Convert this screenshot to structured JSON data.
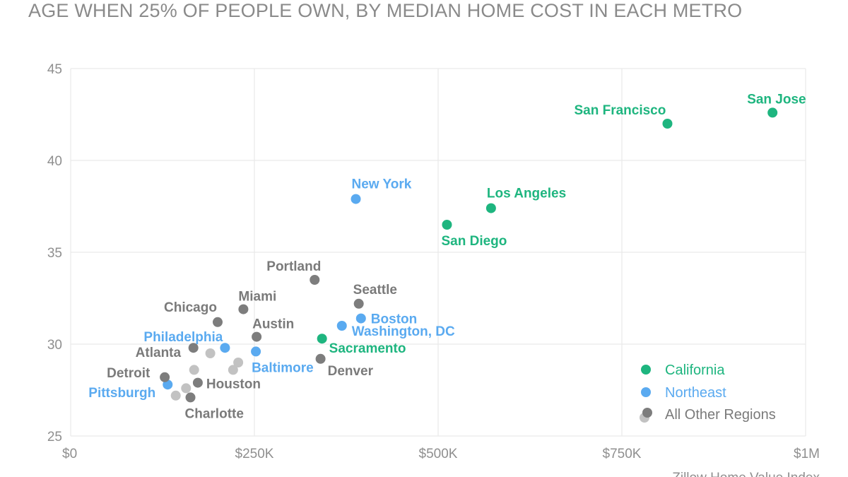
{
  "title": "AGE WHEN 25% OF PEOPLE OWN, BY MEDIAN HOME COST IN EACH METRO",
  "colors": {
    "california": "#1eb57f",
    "northeast": "#5aaaf0",
    "other_dark": "#7d7d7d",
    "other_light": "#c2c2c2",
    "grid": "#e6e6e6"
  },
  "chart_data": {
    "type": "scatter",
    "title": "AGE WHEN 25% OF PEOPLE OWN, BY MEDIAN HOME COST IN EACH METRO",
    "xlabel": "Zillow Home Value Index",
    "ylabel": "",
    "xlim": [
      0,
      1000000
    ],
    "ylim": [
      25,
      45
    ],
    "x_ticks": [
      0,
      250000,
      500000,
      750000,
      1000000
    ],
    "x_tick_labels": [
      "$0",
      "$250K",
      "$500K",
      "$750K",
      "$1M"
    ],
    "y_ticks": [
      25,
      30,
      35,
      40,
      45
    ],
    "y_tick_labels": [
      "25",
      "30",
      "35",
      "40",
      "45"
    ],
    "grid": true,
    "legend_position": "bottom-right",
    "legend": [
      {
        "key": "california",
        "label": "California"
      },
      {
        "key": "northeast",
        "label": "Northeast"
      },
      {
        "key": "other",
        "label": "All Other Regions"
      }
    ],
    "points": [
      {
        "label": "San Jose",
        "x": 955000,
        "y": 42.6,
        "group": "california"
      },
      {
        "label": "San Francisco",
        "x": 812000,
        "y": 42.0,
        "group": "california"
      },
      {
        "label": "Los Angeles",
        "x": 572000,
        "y": 37.4,
        "group": "california"
      },
      {
        "label": "San Diego",
        "x": 512000,
        "y": 36.5,
        "group": "california"
      },
      {
        "label": "Sacramento",
        "x": 342000,
        "y": 30.3,
        "group": "california"
      },
      {
        "label": "New York",
        "x": 388000,
        "y": 37.9,
        "group": "northeast"
      },
      {
        "label": "Boston",
        "x": 395000,
        "y": 31.4,
        "group": "northeast"
      },
      {
        "label": "Washington, DC",
        "x": 369000,
        "y": 31.0,
        "group": "northeast"
      },
      {
        "label": "Philadelphia",
        "x": 210000,
        "y": 29.8,
        "group": "northeast"
      },
      {
        "label": "Baltimore",
        "x": 252000,
        "y": 29.6,
        "group": "northeast"
      },
      {
        "label": "Pittsburgh",
        "x": 132000,
        "y": 27.8,
        "group": "northeast"
      },
      {
        "label": "Portland",
        "x": 332000,
        "y": 33.5,
        "group": "other_dark"
      },
      {
        "label": "Seattle",
        "x": 392000,
        "y": 32.2,
        "group": "other_dark"
      },
      {
        "label": "Miami",
        "x": 235000,
        "y": 31.9,
        "group": "other_dark"
      },
      {
        "label": "Chicago",
        "x": 200000,
        "y": 31.2,
        "group": "other_dark"
      },
      {
        "label": "Austin",
        "x": 253000,
        "y": 30.4,
        "group": "other_dark"
      },
      {
        "label": "Atlanta",
        "x": 167000,
        "y": 29.8,
        "group": "other_dark"
      },
      {
        "label": "Denver",
        "x": 340000,
        "y": 29.2,
        "group": "other_dark"
      },
      {
        "label": "Detroit",
        "x": 128000,
        "y": 28.2,
        "group": "other_dark"
      },
      {
        "label": "Houston",
        "x": 173000,
        "y": 27.9,
        "group": "other_dark"
      },
      {
        "label": "Charlotte",
        "x": 163000,
        "y": 27.1,
        "group": "other_dark"
      },
      {
        "label": "",
        "x": 190000,
        "y": 29.5,
        "group": "other_light"
      },
      {
        "label": "",
        "x": 168000,
        "y": 28.6,
        "group": "other_light"
      },
      {
        "label": "",
        "x": 228000,
        "y": 29.0,
        "group": "other_light"
      },
      {
        "label": "",
        "x": 221000,
        "y": 28.6,
        "group": "other_light"
      },
      {
        "label": "",
        "x": 157000,
        "y": 27.6,
        "group": "other_light"
      },
      {
        "label": "",
        "x": 143000,
        "y": 27.2,
        "group": "other_light"
      }
    ]
  }
}
